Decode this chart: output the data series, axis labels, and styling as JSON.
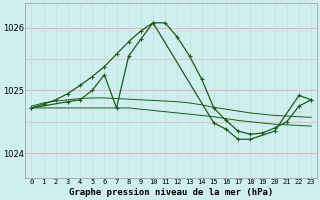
{
  "title": "Graphe pression niveau de la mer (hPa)",
  "bg_color": "#ceeef0",
  "grid_color_h": "#e8b0b0",
  "grid_color_v": "#c8d8d8",
  "line_color": "#1a5c1a",
  "ylim": [
    1023.6,
    1026.4
  ],
  "yticks": [
    1024,
    1025,
    1026
  ],
  "x_labels": [
    "0",
    "1",
    "2",
    "3",
    "4",
    "5",
    "6",
    "7",
    "8",
    "9",
    "10",
    "11",
    "12",
    "13",
    "14",
    "15",
    "16",
    "17",
    "18",
    "19",
    "20",
    "21",
    "22",
    "23"
  ],
  "series_flat1": [
    1024.72,
    1024.72,
    1024.72,
    1024.72,
    1024.72,
    1024.72,
    1024.72,
    1024.72,
    1024.72,
    1024.7,
    1024.68,
    1024.66,
    1024.64,
    1024.62,
    1024.6,
    1024.58,
    1024.55,
    1024.52,
    1024.5,
    1024.48,
    1024.46,
    1024.45,
    1024.44,
    1024.43
  ],
  "series_flat2": [
    1024.75,
    1024.8,
    1024.83,
    1024.85,
    1024.87,
    1024.88,
    1024.88,
    1024.87,
    1024.86,
    1024.85,
    1024.84,
    1024.83,
    1024.82,
    1024.8,
    1024.77,
    1024.73,
    1024.7,
    1024.67,
    1024.64,
    1024.62,
    1024.6,
    1024.59,
    1024.58,
    1024.57
  ],
  "series_arch_x": [
    0,
    1,
    2,
    3,
    4,
    5,
    6,
    7,
    8,
    9,
    10,
    11,
    12,
    13,
    14,
    15,
    16,
    17,
    18,
    19,
    20,
    21,
    22,
    23
  ],
  "series_arch_y": [
    1024.72,
    1024.78,
    1024.85,
    1024.95,
    1025.08,
    1025.22,
    1025.38,
    1025.58,
    1025.78,
    1025.95,
    1026.08,
    1026.08,
    1025.85,
    1025.55,
    1025.18,
    1024.72,
    1024.52,
    1024.35,
    1024.3,
    1024.32,
    1024.4,
    1024.5,
    1024.75,
    1024.85
  ],
  "series_spiky_x": [
    0,
    3,
    4,
    5,
    6,
    7,
    8,
    9,
    10,
    15,
    16,
    17,
    18,
    20,
    22,
    23
  ],
  "series_spiky_y": [
    1024.72,
    1024.82,
    1024.85,
    1025.0,
    1025.25,
    1024.72,
    1025.55,
    1025.82,
    1026.08,
    1024.48,
    1024.38,
    1024.22,
    1024.22,
    1024.35,
    1024.92,
    1024.85
  ]
}
